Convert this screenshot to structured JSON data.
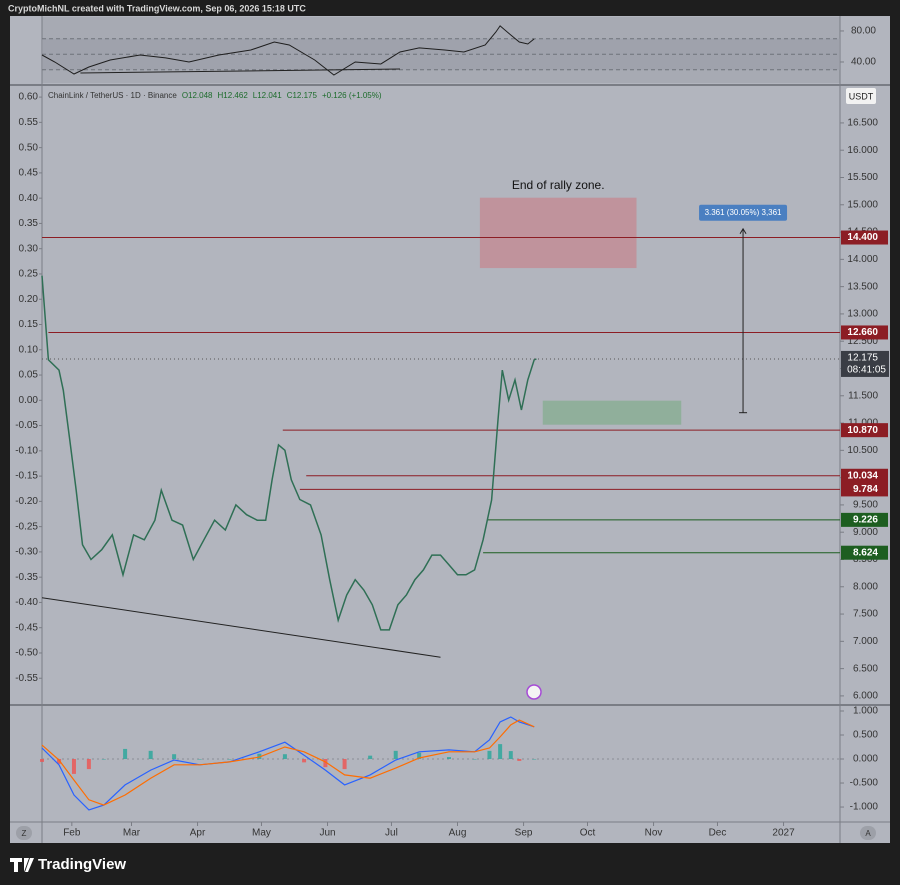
{
  "header": "CryptoMichNL created with TradingView.com, Sep 06, 2026 15:18 UTC",
  "ui": {
    "footer": "TradingView",
    "left_button": "Z",
    "right_button": "A"
  },
  "chart_data": [
    {
      "type": "line",
      "symbol": "ChainLink / TetherUS · 1D · Binance",
      "legend_values": [
        "O12.048",
        "H12.462",
        "L12.041",
        "C12.175",
        "+0.126 (+1.05%)"
      ],
      "currency": "USDT",
      "color": "#2f6f55",
      "x": [
        17,
        20,
        25,
        27,
        30,
        33,
        36,
        40,
        45,
        50,
        55,
        60,
        65,
        70,
        73,
        78,
        83,
        88,
        93,
        98,
        103,
        108,
        113,
        118,
        122,
        125,
        128,
        131,
        134,
        138,
        143,
        148,
        152,
        156,
        160,
        164,
        168,
        172,
        176,
        180,
        184,
        188,
        192,
        196,
        200,
        204,
        208,
        212,
        216,
        220,
        224,
        228,
        231,
        233,
        236,
        239,
        242,
        245,
        248,
        249
      ],
      "values": [
        13.7,
        12.16,
        11.97,
        11.6,
        10.7,
        9.78,
        8.77,
        8.5,
        8.68,
        8.95,
        8.22,
        8.95,
        8.86,
        9.22,
        9.77,
        9.22,
        9.13,
        8.5,
        8.86,
        9.22,
        9.04,
        9.5,
        9.32,
        9.22,
        9.22,
        9.96,
        10.6,
        10.5,
        9.96,
        9.6,
        9.5,
        8.95,
        8.13,
        7.39,
        7.85,
        8.13,
        7.94,
        7.67,
        7.21,
        7.21,
        7.67,
        7.85,
        8.13,
        8.31,
        8.58,
        8.58,
        8.4,
        8.22,
        8.22,
        8.31,
        8.86,
        9.59,
        11.06,
        11.97,
        11.42,
        11.79,
        11.24,
        11.79,
        12.16,
        12.175
      ],
      "xlim": [
        17,
        391.5
      ],
      "xticks": [
        {
          "value": 31,
          "label": "Feb"
        },
        {
          "value": 59,
          "label": "Mar"
        },
        {
          "value": 90,
          "label": "Apr"
        },
        {
          "value": 120,
          "label": "May"
        },
        {
          "value": 151,
          "label": "Jun"
        },
        {
          "value": 181,
          "label": "Jul"
        },
        {
          "value": 212,
          "label": "Aug"
        },
        {
          "value": 243,
          "label": "Sep"
        },
        {
          "value": 273,
          "label": "Oct"
        },
        {
          "value": 304,
          "label": "Nov"
        },
        {
          "value": 334,
          "label": "Dec"
        },
        {
          "value": 365,
          "label": "2027"
        }
      ],
      "ylim": [
        5.87,
        17.14
      ],
      "yticks": [
        {
          "value": 6,
          "label": "6.000"
        },
        {
          "value": 6.5,
          "label": "6.500"
        },
        {
          "value": 7,
          "label": "7.000"
        },
        {
          "value": 7.5,
          "label": "7.500"
        },
        {
          "value": 8,
          "label": "8.000"
        },
        {
          "value": 8.5,
          "label": "8.500"
        },
        {
          "value": 9,
          "label": "9.000"
        },
        {
          "value": 9.5,
          "label": "9.500"
        },
        {
          "value": 10,
          "label": "10.000"
        },
        {
          "value": 10.5,
          "label": "10.500"
        },
        {
          "value": 11,
          "label": "11.000"
        },
        {
          "value": 11.5,
          "label": "11.500"
        },
        {
          "value": 12,
          "label": "12.000"
        },
        {
          "value": 12.5,
          "label": "12.500"
        },
        {
          "value": 13,
          "label": "13.000"
        },
        {
          "value": 13.5,
          "label": "13.500"
        },
        {
          "value": 14,
          "label": "14.000"
        },
        {
          "value": 14.5,
          "label": "14.500"
        },
        {
          "value": 15,
          "label": "15.000"
        },
        {
          "value": 15.5,
          "label": "15.500"
        },
        {
          "value": 16,
          "label": "16.000"
        },
        {
          "value": 16.5,
          "label": "16.500"
        }
      ],
      "y2lim": [
        -0.599,
        0.618
      ],
      "y2ticks": [
        {
          "value": 0.6,
          "label": "0.60"
        },
        {
          "value": 0.55,
          "label": "0.55"
        },
        {
          "value": 0.5,
          "label": "0.50"
        },
        {
          "value": 0.45,
          "label": "0.45"
        },
        {
          "value": 0.4,
          "label": "0.40"
        },
        {
          "value": 0.35,
          "label": "0.35"
        },
        {
          "value": 0.3,
          "label": "0.30"
        },
        {
          "value": 0.25,
          "label": "0.25"
        },
        {
          "value": 0.2,
          "label": "0.20"
        },
        {
          "value": 0.15,
          "label": "0.15"
        },
        {
          "value": 0.1,
          "label": "0.10"
        },
        {
          "value": 0.05,
          "label": "0.05"
        },
        {
          "value": 0,
          "label": "0.00"
        },
        {
          "value": -0.05,
          "label": "-0.05"
        },
        {
          "value": -0.1,
          "label": "-0.10"
        },
        {
          "value": -0.15,
          "label": "-0.15"
        },
        {
          "value": -0.2,
          "label": "-0.20"
        },
        {
          "value": -0.25,
          "label": "-0.25"
        },
        {
          "value": -0.3,
          "label": "-0.30"
        },
        {
          "value": -0.35,
          "label": "-0.35"
        },
        {
          "value": -0.4,
          "label": "-0.40"
        },
        {
          "value": -0.45,
          "label": "-0.45"
        },
        {
          "value": -0.5,
          "label": "-0.50"
        },
        {
          "value": -0.55,
          "label": "-0.55"
        }
      ],
      "levels": [
        {
          "value": 14.4,
          "label": "14.400",
          "color": "#8c1d24",
          "start": 17
        },
        {
          "value": 12.66,
          "label": "12.660",
          "color": "#8c1d24",
          "start": 20
        },
        {
          "value": 10.87,
          "label": "10.870",
          "color": "#8c1d24",
          "start": 130
        },
        {
          "value": 10.034,
          "label": "10.034",
          "color": "#8c1d24",
          "start": 141
        },
        {
          "value": 9.784,
          "label": "9.784",
          "color": "#8c1d24",
          "start": 138
        },
        {
          "value": 9.226,
          "label": "9.226",
          "color": "#1d5e20",
          "start": 226
        },
        {
          "value": 8.624,
          "label": "8.624",
          "color": "#1d5e20",
          "start": 224
        }
      ],
      "last_price": {
        "value": 12.175,
        "label": "12.175",
        "countdown": "08:41:05"
      },
      "zones": [
        {
          "x": [
            222.5,
            296
          ],
          "values": [
            13.84,
            15.13
          ],
          "color": "#c28d96",
          "label": "End of rally zone."
        },
        {
          "x": [
            252,
            317
          ],
          "values": [
            10.97,
            11.41
          ],
          "color": "#8aae95"
        }
      ],
      "measure": {
        "x": 346,
        "values": [
          11.19,
          14.56
        ],
        "label": "3.361 (30.05%) 3,361"
      },
      "trendline": {
        "x": [
          17,
          204
        ],
        "values": [
          7.8,
          6.71
        ]
      }
    },
    {
      "type": "line",
      "color": "#1e1e1e",
      "x": [
        17,
        23,
        32,
        39,
        49,
        63,
        75,
        86,
        100,
        115,
        126,
        133,
        145,
        154,
        164,
        176,
        185,
        194,
        206,
        215,
        225,
        230,
        232,
        237,
        241,
        245,
        248
      ],
      "values": [
        49,
        40,
        24.5,
        33.5,
        42.6,
        49,
        45.2,
        40,
        49,
        55.5,
        65.8,
        61.9,
        42.6,
        23.2,
        40,
        37.4,
        52.9,
        58.1,
        55.5,
        52.9,
        61.9,
        78.7,
        86.5,
        74.8,
        65.8,
        63.2,
        69.7
      ],
      "xlim": [
        17,
        391.5
      ],
      "ylim": [
        12.9,
        98
      ],
      "yticks": [
        {
          "value": 80,
          "label": "80.00"
        },
        {
          "value": 40,
          "label": "40.00"
        }
      ],
      "bands": [
        70,
        50,
        30
      ],
      "trendline": {
        "x": [
          35,
          185
        ],
        "values": [
          25.8,
          31
        ]
      }
    },
    {
      "type": "line",
      "x": [
        17,
        25,
        32,
        39,
        46,
        56,
        68,
        79,
        91,
        105,
        119,
        131,
        140,
        150,
        159,
        171,
        183,
        194,
        208,
        220,
        227,
        232,
        237,
        241,
        248
      ],
      "series": [
        {
          "color": "#2962ff",
          "values": [
            0.23,
            -0.12,
            -0.75,
            -1.06,
            -0.96,
            -0.54,
            -0.23,
            -0.02,
            -0.12,
            -0.06,
            0.15,
            0.35,
            0.08,
            -0.23,
            -0.54,
            -0.33,
            -0.02,
            0.15,
            0.19,
            0.15,
            0.4,
            0.77,
            0.875,
            0.77,
            0.67
          ]
        },
        {
          "color": "#ff6d00",
          "values": [
            0.29,
            -0.02,
            -0.44,
            -0.85,
            -0.96,
            -0.75,
            -0.4,
            -0.12,
            -0.12,
            -0.06,
            0.04,
            0.25,
            0.15,
            -0.06,
            -0.33,
            -0.4,
            -0.19,
            0.02,
            0.15,
            0.15,
            0.23,
            0.46,
            0.71,
            0.81,
            0.67
          ]
        }
      ],
      "histogram": {
        "values": [
          -0.06,
          -0.1,
          -0.31,
          -0.21,
          0,
          0.21,
          0.17,
          0.1,
          0,
          0,
          0.11,
          0.1,
          -0.07,
          -0.17,
          -0.21,
          0.07,
          0.17,
          0.13,
          0.04,
          0,
          0.17,
          0.31,
          0.165,
          -0.04,
          0
        ],
        "up_color": "#26a69a",
        "down_color": "#ef5350"
      },
      "xlim": [
        17,
        391.5
      ],
      "ylim": [
        -1.27,
        1.083
      ],
      "yticks": [
        {
          "value": 1,
          "label": "1.000"
        },
        {
          "value": 0.5,
          "label": "0.500"
        },
        {
          "value": 0,
          "label": "0.000"
        },
        {
          "value": -0.5,
          "label": "-0.500"
        },
        {
          "value": -1,
          "label": "-1.000"
        }
      ]
    }
  ]
}
